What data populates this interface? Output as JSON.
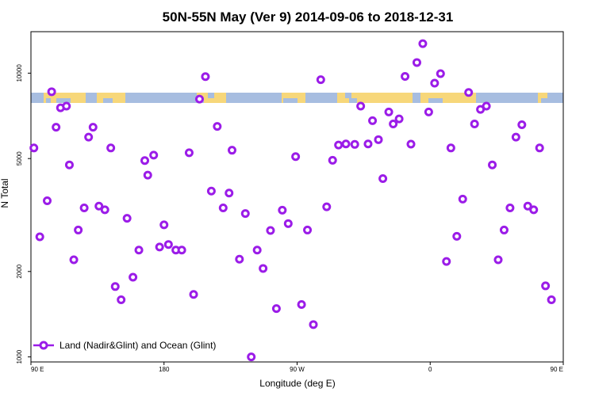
{
  "chart_data": {
    "type": "scatter",
    "title": "50N-55N May (Ver 9)   2014-09-06 to 2018-12-31",
    "xlabel": "Longitude (deg E)",
    "ylabel": "N Total",
    "xlim": [
      90,
      450
    ],
    "ylim": [
      960,
      14000
    ],
    "y_scale": "log",
    "grid": false,
    "x_ticks": [
      {
        "value": 90,
        "label": "90 E"
      },
      {
        "value": 180,
        "label": "180"
      },
      {
        "value": 270,
        "label": "90 W"
      },
      {
        "value": 360,
        "label": "0"
      },
      {
        "value": 450,
        "label": "90 E"
      }
    ],
    "y_ticks": [
      {
        "value": 1000,
        "label": "1000"
      },
      {
        "value": 2000,
        "label": "2000"
      },
      {
        "value": 5000,
        "label": "5000"
      },
      {
        "value": 10000,
        "label": "10000"
      }
    ],
    "legend": {
      "label": "Land (Nadir&Glint) and Ocean (Glint)",
      "position": "bottom-left"
    },
    "series": [
      {
        "name": "Land (Nadir&Glint) and Ocean (Glint)",
        "color": "#9b1ce8",
        "points": [
          [
            92,
            5450
          ],
          [
            96,
            2650
          ],
          [
            101,
            3550
          ],
          [
            104,
            8600
          ],
          [
            107,
            6450
          ],
          [
            110,
            7550
          ],
          [
            114,
            7650
          ],
          [
            116,
            4750
          ],
          [
            119,
            2200
          ],
          [
            122,
            2800
          ],
          [
            126,
            3350
          ],
          [
            129,
            5950
          ],
          [
            132,
            6450
          ],
          [
            136,
            3400
          ],
          [
            140,
            3300
          ],
          [
            144,
            5450
          ],
          [
            147,
            1770
          ],
          [
            151,
            1590
          ],
          [
            155,
            3080
          ],
          [
            159,
            1910
          ],
          [
            163,
            2380
          ],
          [
            167,
            4920
          ],
          [
            169,
            4370
          ],
          [
            173,
            5140
          ],
          [
            177,
            2440
          ],
          [
            180,
            2920
          ],
          [
            183,
            2490
          ],
          [
            188,
            2380
          ],
          [
            192,
            2380
          ],
          [
            197,
            5240
          ],
          [
            200,
            1660
          ],
          [
            204,
            8100
          ],
          [
            208,
            9720
          ],
          [
            212,
            3840
          ],
          [
            216,
            6490
          ],
          [
            220,
            3350
          ],
          [
            224,
            3780
          ],
          [
            226,
            5350
          ],
          [
            231,
            2210
          ],
          [
            235,
            3200
          ],
          [
            239,
            1000
          ],
          [
            243,
            2380
          ],
          [
            247,
            2050
          ],
          [
            252,
            2790
          ],
          [
            256,
            1480
          ],
          [
            260,
            3290
          ],
          [
            264,
            2950
          ],
          [
            269,
            5080
          ],
          [
            273,
            1530
          ],
          [
            277,
            2800
          ],
          [
            281,
            1300
          ],
          [
            286,
            9480
          ],
          [
            290,
            3380
          ],
          [
            294,
            4930
          ],
          [
            298,
            5580
          ],
          [
            303,
            5630
          ],
          [
            309,
            5610
          ],
          [
            313,
            7650
          ],
          [
            318,
            5630
          ],
          [
            321,
            6800
          ],
          [
            325,
            5830
          ],
          [
            328,
            4250
          ],
          [
            332,
            7300
          ],
          [
            335,
            6620
          ],
          [
            339,
            6900
          ],
          [
            343,
            9740
          ],
          [
            347,
            5620
          ],
          [
            351,
            10900
          ],
          [
            355,
            12700
          ],
          [
            359,
            7300
          ],
          [
            363,
            9220
          ],
          [
            367,
            9960
          ],
          [
            371,
            2170
          ],
          [
            374,
            5450
          ],
          [
            378,
            2660
          ],
          [
            382,
            3600
          ],
          [
            386,
            8550
          ],
          [
            390,
            6620
          ],
          [
            394,
            7450
          ],
          [
            398,
            7650
          ],
          [
            402,
            4750
          ],
          [
            406,
            2200
          ],
          [
            410,
            2800
          ],
          [
            414,
            3350
          ],
          [
            418,
            5950
          ],
          [
            422,
            6580
          ],
          [
            426,
            3400
          ],
          [
            430,
            3300
          ],
          [
            434,
            5450
          ],
          [
            438,
            1780
          ],
          [
            442,
            1590
          ]
        ]
      }
    ]
  }
}
